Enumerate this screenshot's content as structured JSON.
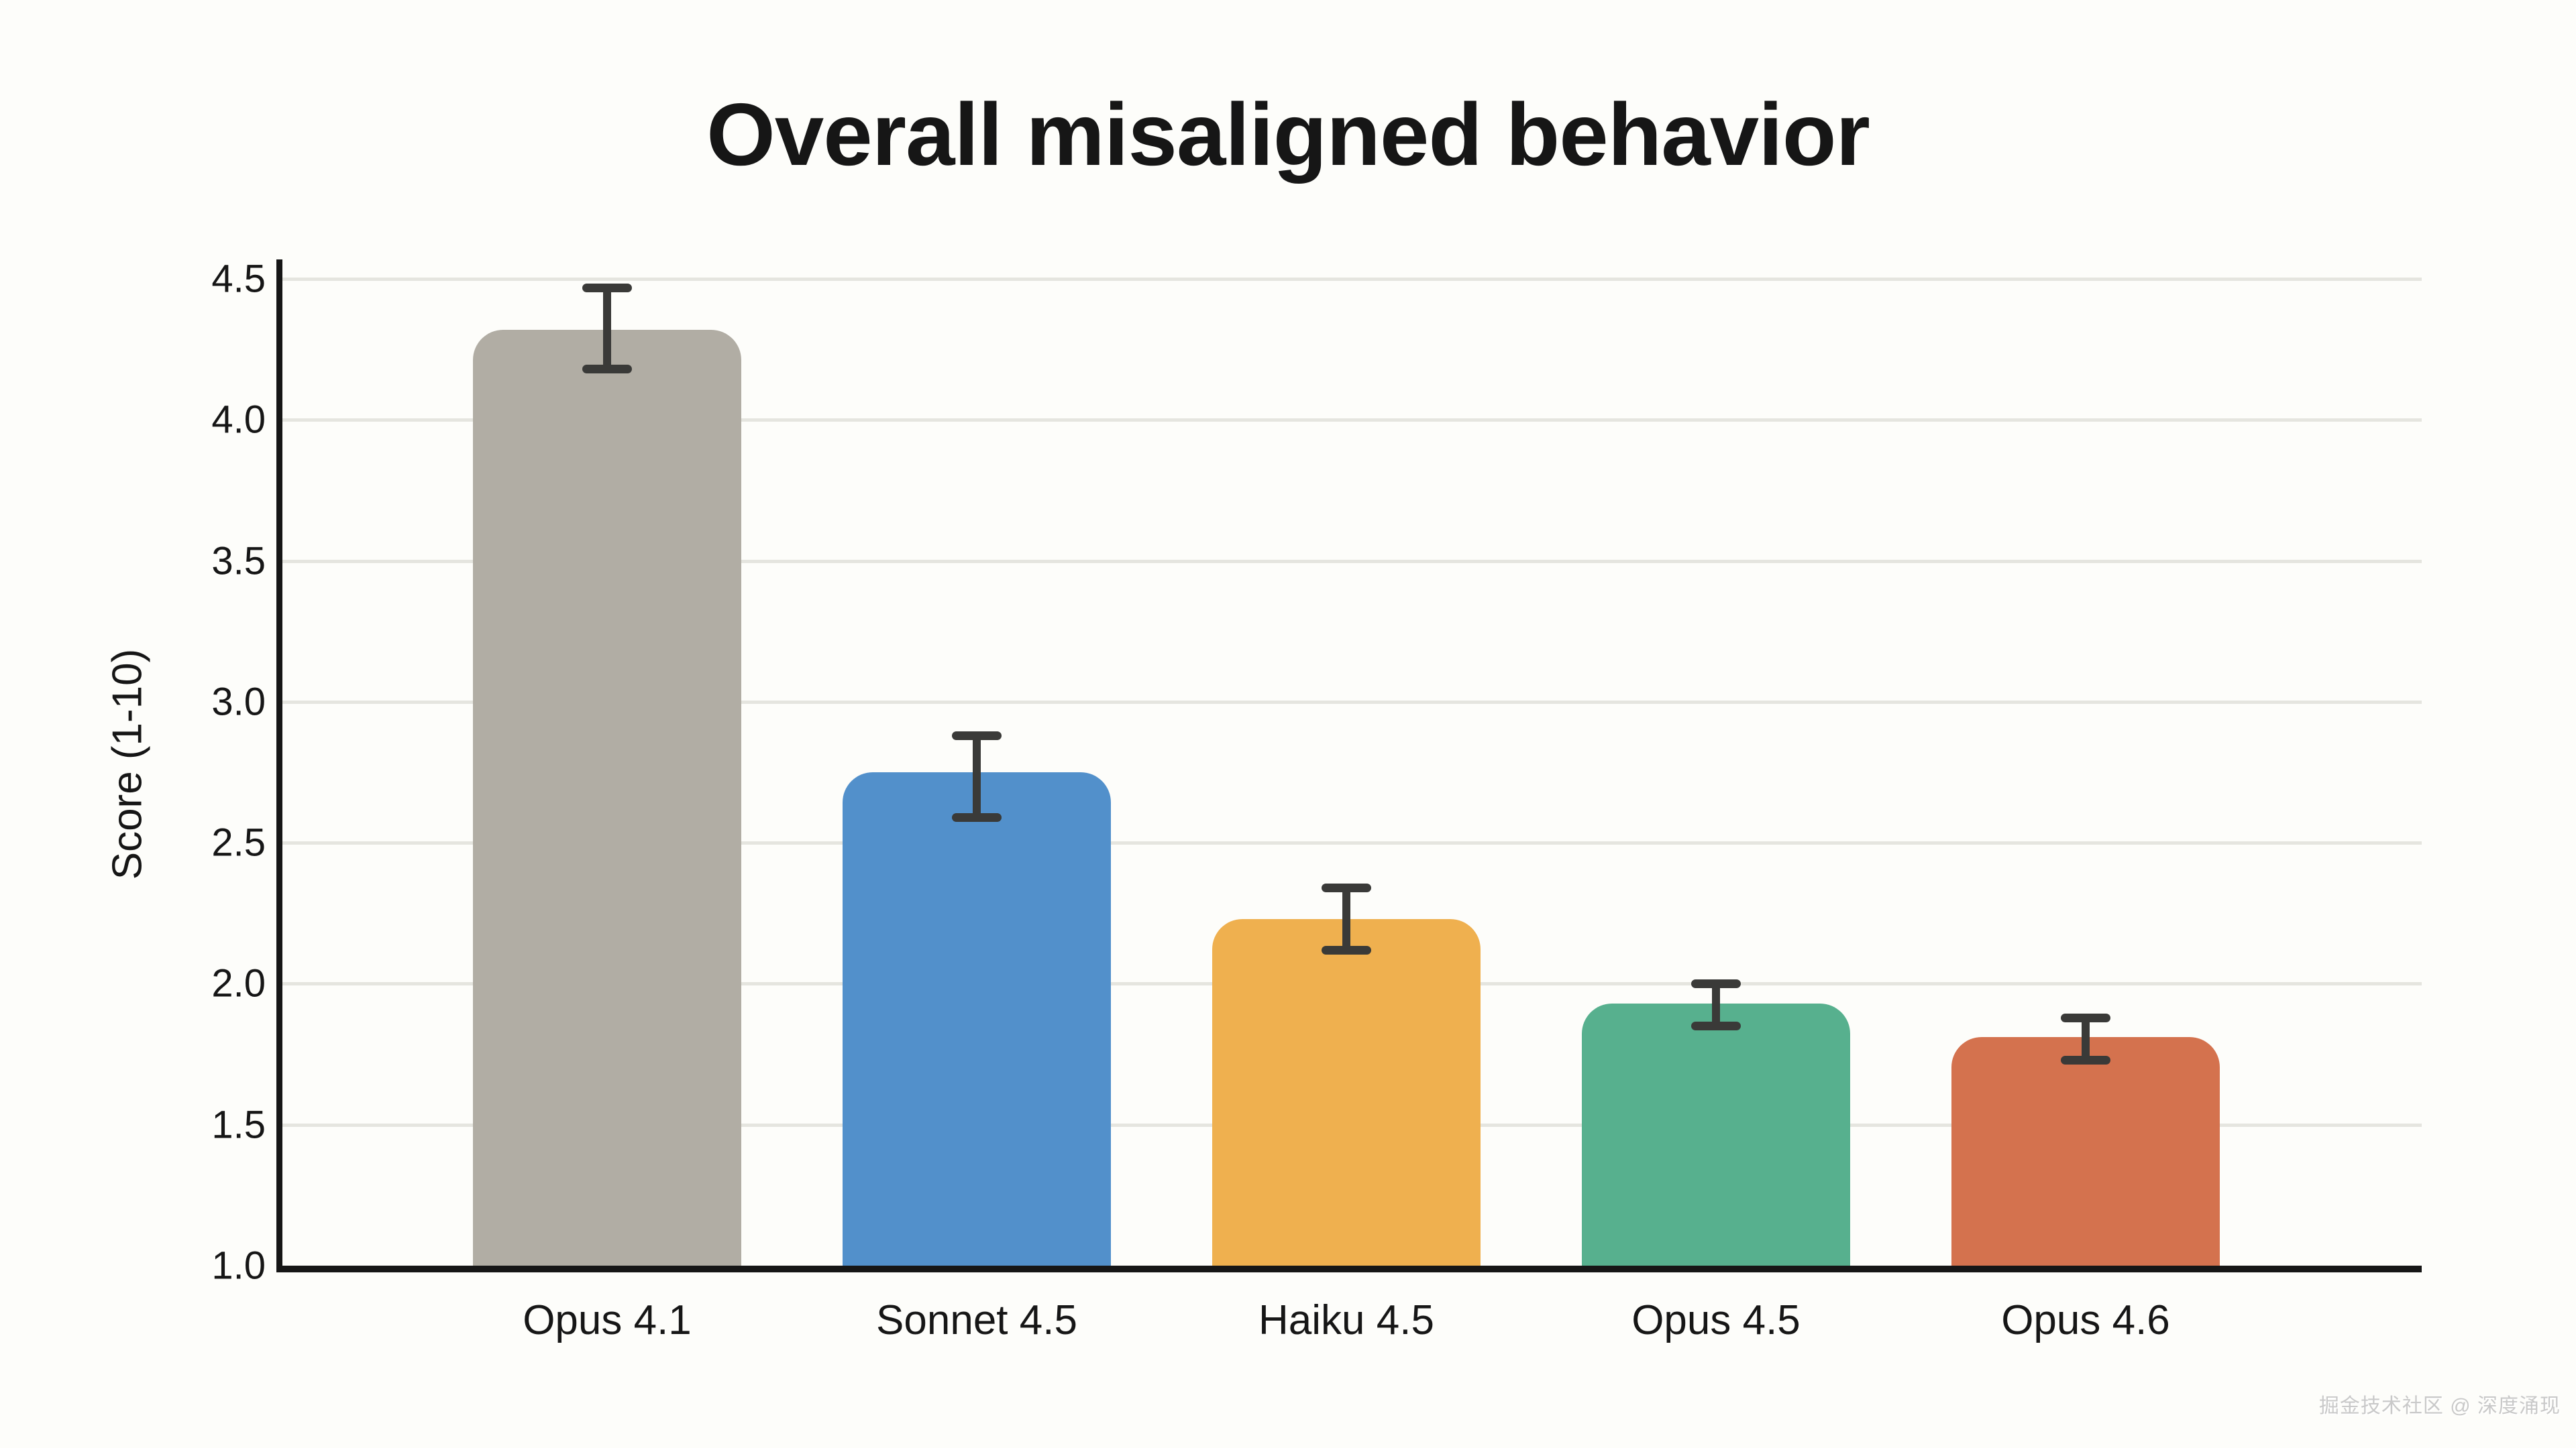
{
  "title": "Overall misaligned behavior",
  "watermark": "掘金技术社区 @ 深度涌现",
  "chart_data": {
    "type": "bar",
    "title": "Overall misaligned behavior",
    "xlabel": "",
    "ylabel": "Score (1-10)",
    "categories": [
      "Opus 4.1",
      "Sonnet 4.5",
      "Haiku 4.5",
      "Opus 4.5",
      "Opus 4.6"
    ],
    "values": [
      4.32,
      2.75,
      2.23,
      1.93,
      1.81
    ],
    "error_low": [
      4.18,
      2.59,
      2.12,
      1.85,
      1.73
    ],
    "error_high": [
      4.47,
      2.88,
      2.34,
      2.0,
      1.88
    ],
    "bar_colors": [
      "#b1ada4",
      "#5290cb",
      "#efb04f",
      "#57b08e",
      "#d4724e"
    ],
    "y_ticks": [
      "4.5",
      "4.0",
      "3.5",
      "3.0",
      "2.5",
      "2.0",
      "1.5",
      "1.0"
    ],
    "y_tick_values": [
      4.5,
      4.0,
      3.5,
      3.0,
      2.5,
      2.0,
      1.5,
      1.0
    ],
    "ylim": [
      1.0,
      4.57
    ],
    "grid": "horizontal",
    "legend": "none",
    "grid_color": "#e5e5df",
    "axis_color": "#161616",
    "error_bar_color": "#3a3a38",
    "background_color": "#fdfdfa",
    "text_color": "#161616"
  }
}
